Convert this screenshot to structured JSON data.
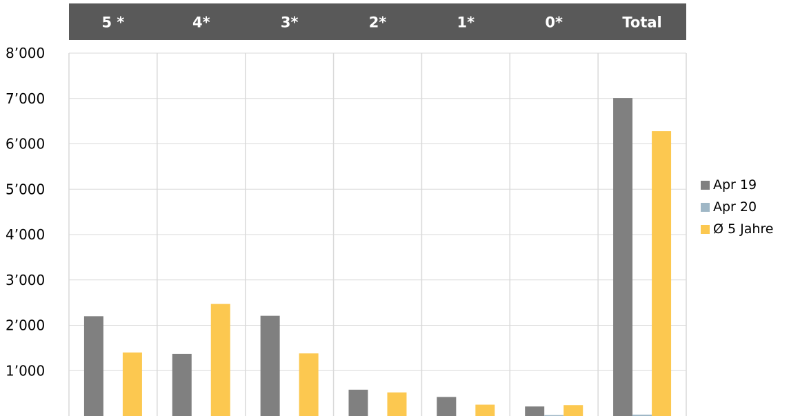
{
  "chart_data": {
    "type": "bar",
    "categories": [
      "5 *",
      "4*",
      "3*",
      "2*",
      "1*",
      "0*",
      "Total"
    ],
    "series": [
      {
        "name": "Apr 19",
        "color": "#808080",
        "values": [
          2200,
          1370,
          2210,
          580,
          420,
          210,
          7010
        ]
      },
      {
        "name": "Apr 20",
        "color": "#9fb7c6",
        "values": [
          0,
          0,
          0,
          0,
          0,
          20,
          30
        ]
      },
      {
        "name": "Ø 5 Jahre",
        "color": "#fcc850",
        "values": [
          1400,
          2470,
          1380,
          520,
          250,
          240,
          6280
        ]
      }
    ],
    "ylim": [
      0,
      8000
    ],
    "yticks": [
      {
        "value": 1000,
        "label": "1’000"
      },
      {
        "value": 2000,
        "label": "2’000"
      },
      {
        "value": 3000,
        "label": "3’000"
      },
      {
        "value": 4000,
        "label": "4’000"
      },
      {
        "value": 5000,
        "label": "5’000"
      },
      {
        "value": 6000,
        "label": "6’000"
      },
      {
        "value": 7000,
        "label": "7’000"
      },
      {
        "value": 8000,
        "label": "8’000"
      }
    ],
    "grid": true,
    "legend_position": "right",
    "header_color": "#595959",
    "title": "",
    "xlabel": "",
    "ylabel": ""
  }
}
